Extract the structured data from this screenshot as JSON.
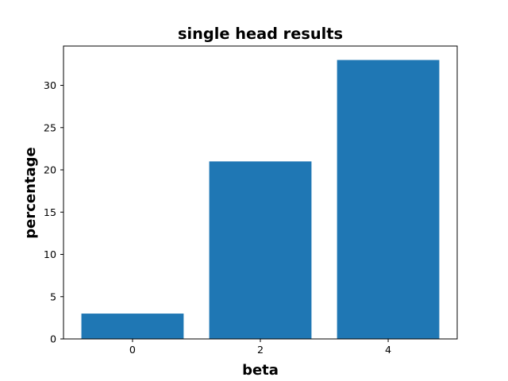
{
  "chart_data": {
    "type": "bar",
    "title": "single head results",
    "xlabel": "beta",
    "ylabel": "percentage",
    "categories": [
      "0",
      "2",
      "4"
    ],
    "values": [
      3,
      21,
      33
    ],
    "yticks": [
      "0",
      "5",
      "10",
      "15",
      "20",
      "25",
      "30"
    ],
    "ylim": [
      0,
      34.65
    ],
    "grid": false,
    "bar_color": "#1f77b4"
  }
}
